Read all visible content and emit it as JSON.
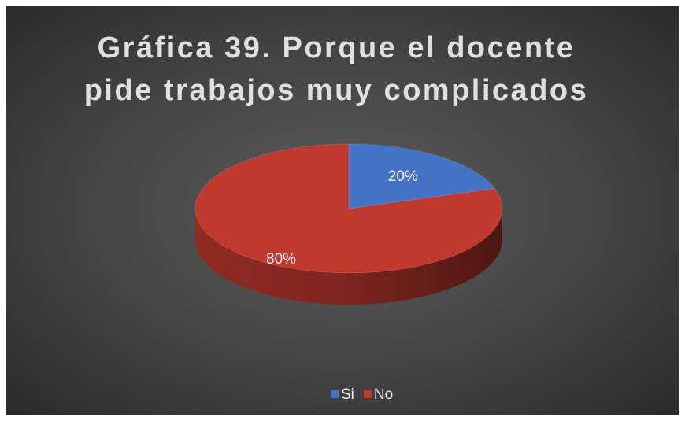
{
  "chart_data": {
    "type": "pie",
    "title": "Gráfica 39. Porque el docente pide trabajos muy complicados",
    "categories": [
      "Si",
      "No"
    ],
    "values": [
      20,
      80
    ],
    "value_labels": [
      "20%",
      "80%"
    ],
    "colors": [
      "#4472c4",
      "#c0392f"
    ],
    "legend": "bottom"
  }
}
